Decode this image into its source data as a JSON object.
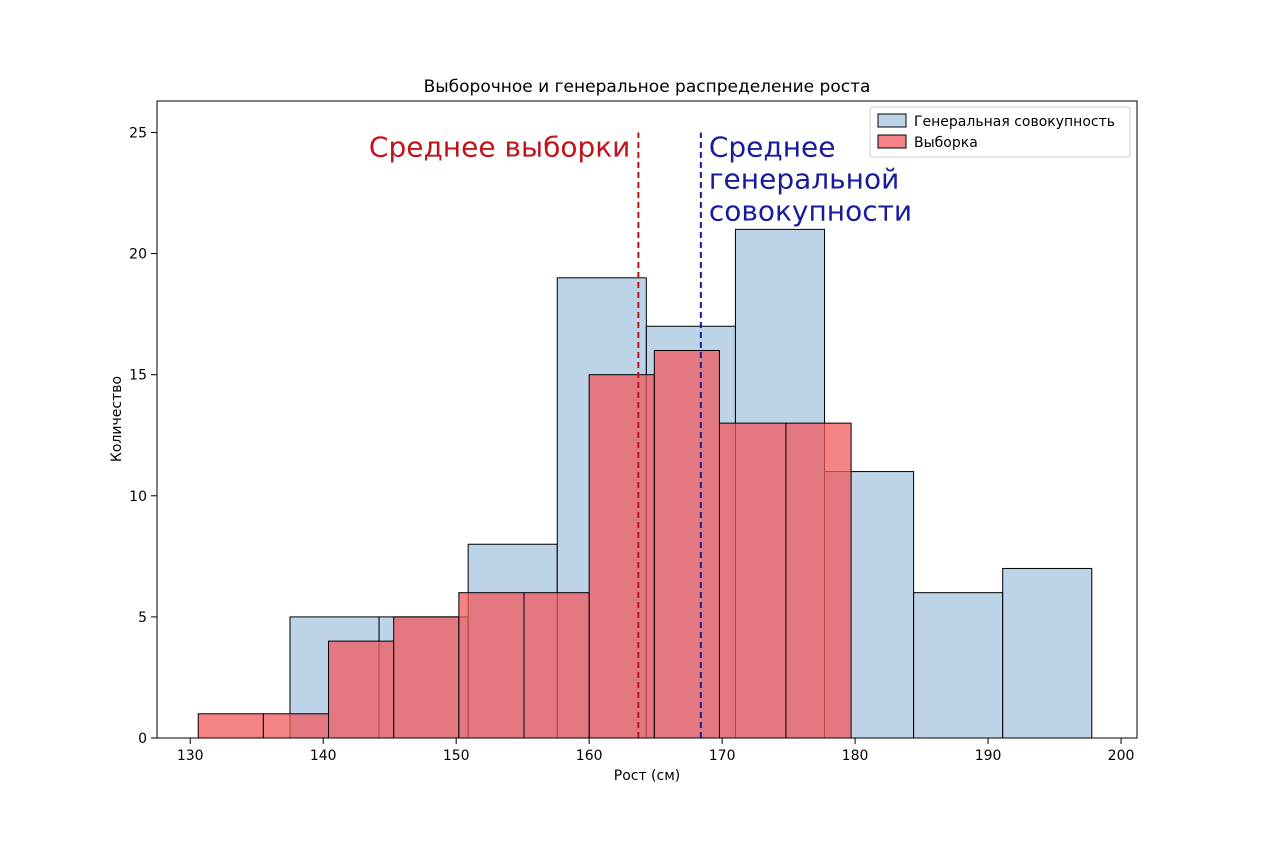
{
  "chart_data": {
    "type": "histogram",
    "title": "Выборочное и генеральное распределение роста",
    "xlabel": "Рост (см)",
    "ylabel": "Количество",
    "xlim": [
      127.5,
      201.2
    ],
    "ylim": [
      0,
      26.3
    ],
    "xticks": [
      130,
      140,
      150,
      160,
      170,
      180,
      190,
      200
    ],
    "yticks": [
      0,
      5,
      10,
      15,
      20,
      25
    ],
    "grid": false,
    "legend_position": "top-right",
    "series": [
      {
        "name": "Генеральная совокупность",
        "color": "#a7c6e0",
        "alpha": 0.75,
        "bins": [
          {
            "x0": 137.5,
            "x1": 144.2,
            "count": 5
          },
          {
            "x0": 144.2,
            "x1": 150.9,
            "count": 5
          },
          {
            "x0": 150.9,
            "x1": 157.6,
            "count": 8
          },
          {
            "x0": 157.6,
            "x1": 164.3,
            "count": 19
          },
          {
            "x0": 164.3,
            "x1": 171.0,
            "count": 17
          },
          {
            "x0": 171.0,
            "x1": 177.7,
            "count": 21
          },
          {
            "x0": 177.7,
            "x1": 184.4,
            "count": 11
          },
          {
            "x0": 184.4,
            "x1": 191.1,
            "count": 6
          },
          {
            "x0": 191.1,
            "x1": 197.8,
            "count": 7
          }
        ]
      },
      {
        "name": "Выборка",
        "color": "#f25a5e",
        "alpha": 0.75,
        "bins": [
          {
            "x0": 130.6,
            "x1": 135.5,
            "count": 1
          },
          {
            "x0": 135.5,
            "x1": 140.4,
            "count": 1
          },
          {
            "x0": 140.4,
            "x1": 145.3,
            "count": 4
          },
          {
            "x0": 145.3,
            "x1": 150.2,
            "count": 5
          },
          {
            "x0": 150.2,
            "x1": 155.1,
            "count": 6
          },
          {
            "x0": 155.1,
            "x1": 160.0,
            "count": 6
          },
          {
            "x0": 160.0,
            "x1": 164.9,
            "count": 15
          },
          {
            "x0": 164.9,
            "x1": 169.8,
            "count": 16
          },
          {
            "x0": 169.8,
            "x1": 174.8,
            "count": 13
          },
          {
            "x0": 174.8,
            "x1": 179.7,
            "count": 13
          }
        ]
      }
    ],
    "vlines": [
      {
        "name": "sample-mean",
        "x": 163.7,
        "color": "#c0141b",
        "style": "dashed"
      },
      {
        "name": "population-mean",
        "x": 168.4,
        "color": "#1a1a9c",
        "style": "dashed"
      }
    ],
    "annotations": [
      {
        "name": "sample-mean-label",
        "lines": [
          "Среднее выборки"
        ],
        "color": "#c0141b",
        "anchor_x": 163.7,
        "anchor_y": 25,
        "align": "right"
      },
      {
        "name": "population-mean-label",
        "lines": [
          "Среднее",
          "генеральной",
          "совокупности"
        ],
        "color": "#1a1a9c",
        "anchor_x": 168.4,
        "anchor_y": 25,
        "align": "left"
      }
    ]
  }
}
